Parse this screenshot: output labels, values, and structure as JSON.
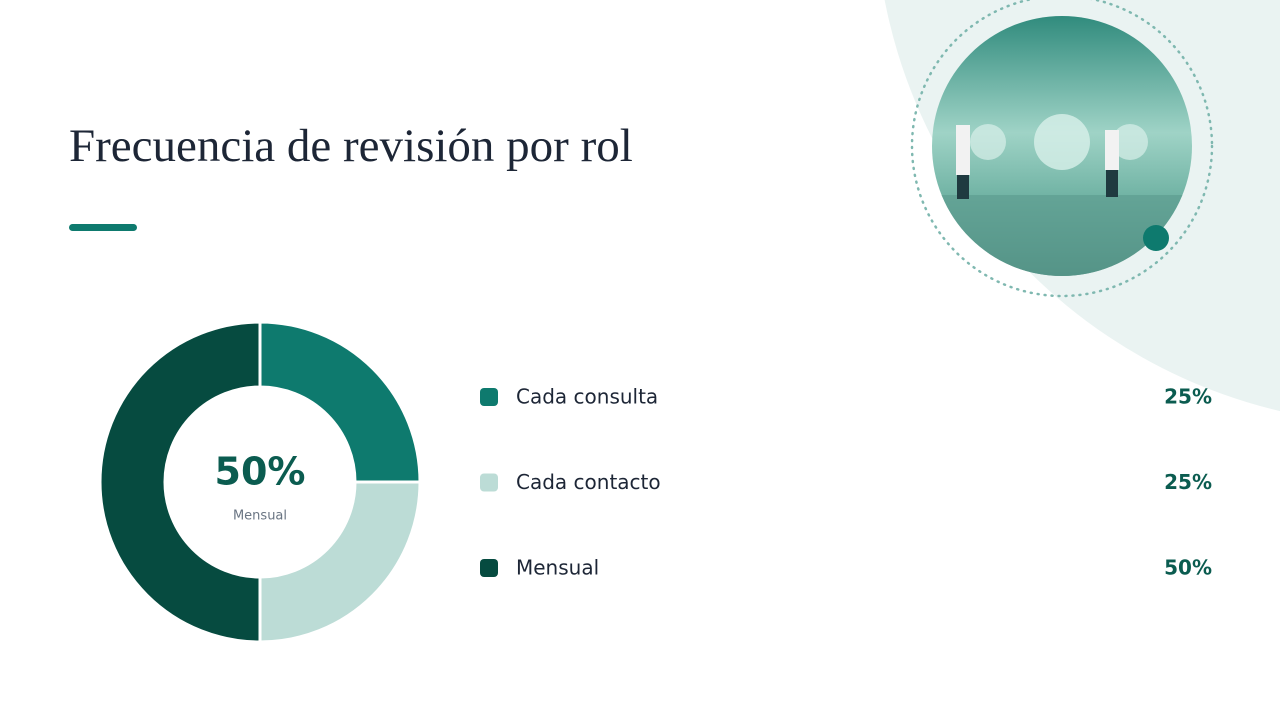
{
  "chart_data": {
    "type": "pie",
    "title": "Frecuencia de revisión por rol",
    "categories": [
      "Cada consulta",
      "Cada contacto",
      "Mensual"
    ],
    "values": [
      25,
      25,
      50
    ],
    "value_labels": [
      "25%",
      "25%",
      "50%"
    ],
    "colors": [
      "#0e7a6e",
      "#bcdcd6",
      "#064b40"
    ]
  }
}
